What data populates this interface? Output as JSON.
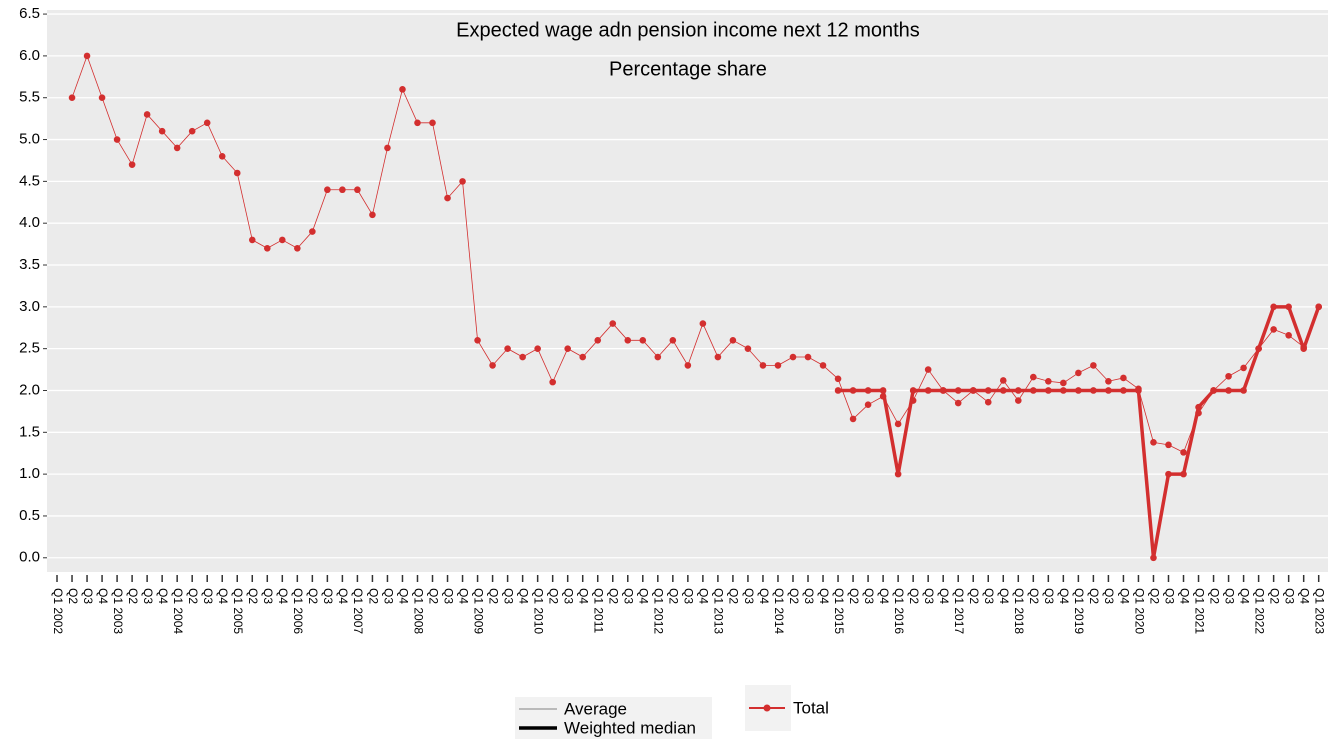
{
  "chart_data": {
    "type": "line",
    "title": "Expected wage adn pension income next 12 months",
    "subtitle": "Percentage share",
    "categories": [
      "Q1 2002",
      "Q2",
      "Q3",
      "Q4",
      "Q1 2003",
      "Q2",
      "Q3",
      "Q4",
      "Q1 2004",
      "Q2",
      "Q3",
      "Q4",
      "Q1 2005",
      "Q2",
      "Q3",
      "Q4",
      "Q1 2006",
      "Q2",
      "Q3",
      "Q4",
      "Q1 2007",
      "Q2",
      "Q3",
      "Q4",
      "Q1 2008",
      "Q2",
      "Q3",
      "Q4",
      "Q1 2009",
      "Q2",
      "Q3",
      "Q4",
      "Q1 2010",
      "Q2",
      "Q3",
      "Q4",
      "Q1 2011",
      "Q2",
      "Q3",
      "Q4",
      "Q1 2012",
      "Q2",
      "Q3",
      "Q4",
      "Q1 2013",
      "Q2",
      "Q3",
      "Q4",
      "Q1 2014",
      "Q2",
      "Q3",
      "Q4",
      "Q1 2015",
      "Q2",
      "Q3",
      "Q4",
      "Q1 2016",
      "Q2",
      "Q3",
      "Q4",
      "Q1 2017",
      "Q2",
      "Q3",
      "Q4",
      "Q1 2018",
      "Q2",
      "Q3",
      "Q4",
      "Q1 2019",
      "Q2",
      "Q3",
      "Q4",
      "Q1 2020",
      "Q2",
      "Q3",
      "Q4",
      "Q1 2021",
      "Q2",
      "Q3",
      "Q4",
      "Q1 2022",
      "Q2",
      "Q3",
      "Q4",
      "Q1 2023"
    ],
    "series": [
      {
        "name": "Average",
        "color": "#d32f2f",
        "width": 0.8,
        "values": [
          null,
          5.5,
          6.0,
          5.5,
          5.0,
          4.7,
          5.3,
          5.1,
          4.9,
          5.1,
          5.2,
          4.8,
          4.6,
          3.8,
          3.7,
          3.8,
          3.7,
          3.9,
          4.4,
          4.4,
          4.4,
          4.1,
          4.9,
          5.6,
          5.2,
          5.2,
          4.3,
          4.5,
          2.6,
          2.3,
          2.5,
          2.4,
          2.5,
          2.1,
          2.5,
          2.4,
          2.6,
          2.8,
          2.6,
          2.6,
          2.4,
          2.6,
          2.3,
          2.8,
          2.4,
          2.6,
          2.5,
          2.3,
          2.3,
          2.4,
          2.4,
          2.3,
          2.14,
          1.66,
          1.83,
          1.93,
          1.6,
          1.88,
          2.25,
          2.0,
          1.85,
          2.0,
          1.86,
          2.12,
          1.88,
          2.16,
          2.11,
          2.09,
          2.21,
          2.3,
          2.11,
          2.15,
          2.02,
          1.38,
          1.35,
          1.26,
          1.73,
          2.0,
          2.17,
          2.27,
          2.5,
          2.73,
          2.66,
          2.52,
          3.0
        ]
      },
      {
        "name": "Weighted median",
        "color": "#d32f2f",
        "width": 3.5,
        "values": [
          null,
          null,
          null,
          null,
          null,
          null,
          null,
          null,
          null,
          null,
          null,
          null,
          null,
          null,
          null,
          null,
          null,
          null,
          null,
          null,
          null,
          null,
          null,
          null,
          null,
          null,
          null,
          null,
          null,
          null,
          null,
          null,
          null,
          null,
          null,
          null,
          null,
          null,
          null,
          null,
          null,
          null,
          null,
          null,
          null,
          null,
          null,
          null,
          null,
          null,
          null,
          null,
          2,
          2,
          2,
          2,
          1,
          2,
          2,
          2,
          2,
          2,
          2,
          2,
          2,
          2,
          2,
          2,
          2,
          2,
          2,
          2,
          2,
          0,
          1,
          1,
          1.8,
          2,
          2,
          2,
          2.5,
          3,
          3,
          2.5,
          3
        ]
      }
    ],
    "color_legend": "Total",
    "ylim": [
      -0.17,
      6.52
    ],
    "yticks": [
      {
        "value": 0,
        "label": "0.0"
      },
      {
        "value": 0.5,
        "label": "0.5"
      },
      {
        "value": 1,
        "label": "1.0"
      },
      {
        "value": 1.5,
        "label": "1.5"
      },
      {
        "value": 2,
        "label": "2.0"
      },
      {
        "value": 2.5,
        "label": "2.5"
      },
      {
        "value": 3,
        "label": "3.0"
      },
      {
        "value": 3.5,
        "label": "3.5"
      },
      {
        "value": 4,
        "label": "4.0"
      },
      {
        "value": 4.5,
        "label": "4.5"
      },
      {
        "value": 5,
        "label": "5.0"
      },
      {
        "value": 5.5,
        "label": "5.5"
      },
      {
        "value": 6,
        "label": "6.0"
      },
      {
        "value": 6.5,
        "label": "6.5"
      }
    ],
    "grid": true
  }
}
